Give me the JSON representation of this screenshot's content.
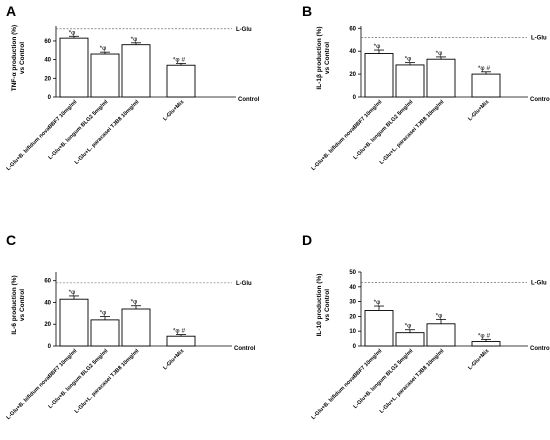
{
  "figure": {
    "background": "#ffffff"
  },
  "chart_data": [
    {
      "panel": "A",
      "type": "bar",
      "ylabel_lines": [
        "TNF-α production (%)",
        "vs Control"
      ],
      "yticks": [
        0,
        20,
        40,
        60
      ],
      "ylim": [
        0,
        76
      ],
      "categories": [
        "L-Glu+B. bifidum novaBBF7 10mg/ml",
        "L-Glu+B. longum BLG2 5mg/ml",
        "L-Glu+L. paracasei TJB8 10mg/ml",
        "L-Glu+Mix"
      ],
      "values": [
        63,
        46,
        56,
        34
      ],
      "errors": [
        2,
        2,
        2,
        2
      ],
      "annotations": [
        "*φ",
        "*φ",
        "*φ",
        "*φ #"
      ],
      "ref_line": {
        "label": "L-Glu",
        "value": 73
      },
      "baseline_label": "Control",
      "grid": false
    },
    {
      "panel": "B",
      "type": "bar",
      "ylabel_lines": [
        "IL-1β production (%)",
        "vs Control"
      ],
      "yticks": [
        0,
        20,
        40,
        60
      ],
      "ylim": [
        0,
        62
      ],
      "categories": [
        "L-Glu+B. bifidum novaBBF7 10mg/ml",
        "L-Glu+B. longum BLG2 5mg/ml",
        "L-Glu+L. paracasei TJB8 10mg/ml",
        "L-Glu+Mix"
      ],
      "values": [
        38,
        28,
        33,
        20
      ],
      "errors": [
        3,
        2,
        2,
        2
      ],
      "annotations": [
        "*φ",
        "*φ",
        "*φ",
        "*φ #"
      ],
      "ref_line": {
        "label": "L-Glu",
        "value": 52
      },
      "baseline_label": "Control",
      "grid": false
    },
    {
      "panel": "C",
      "type": "bar",
      "ylabel_lines": [
        "IL-6 production (%)",
        "vs Control"
      ],
      "yticks": [
        0,
        20,
        40,
        60
      ],
      "ylim": [
        0,
        68
      ],
      "categories": [
        "L-Glu+B. bifidum novaBBF7 10mg/ml",
        "L-Glu+B. longum BLG2 5mg/ml",
        "L-Glu+L. paracasei TJB8 10mg/ml",
        "L-Glu+Mix"
      ],
      "values": [
        43,
        24,
        34,
        9
      ],
      "errors": [
        3,
        3,
        3,
        1.5
      ],
      "annotations": [
        "*φ",
        "*φ",
        "*φ",
        "*φ #"
      ],
      "ref_line": {
        "label": "L-Glu",
        "value": 58
      },
      "baseline_label": "Control",
      "grid": false
    },
    {
      "panel": "D",
      "type": "bar",
      "ylabel_lines": [
        "IL-10 production (%)",
        "vs Control"
      ],
      "yticks": [
        0,
        10,
        20,
        30,
        40,
        50
      ],
      "ylim": [
        0,
        50
      ],
      "categories": [
        "L-Glu+B. bifidum novaBBF7 10mg/ml",
        "L-Glu+B. longum BLG2 5mg/ml",
        "L-Glu+L. paracasei TJB8 10mg/ml",
        "L-Glu+Mix"
      ],
      "values": [
        24,
        9,
        15,
        3
      ],
      "errors": [
        3,
        2,
        3,
        1.5
      ],
      "annotations": [
        "*φ",
        "*φ",
        "*φ",
        "*φ #"
      ],
      "ref_line": {
        "label": "L-Glu",
        "value": 43
      },
      "baseline_label": "Control",
      "grid": false
    }
  ]
}
